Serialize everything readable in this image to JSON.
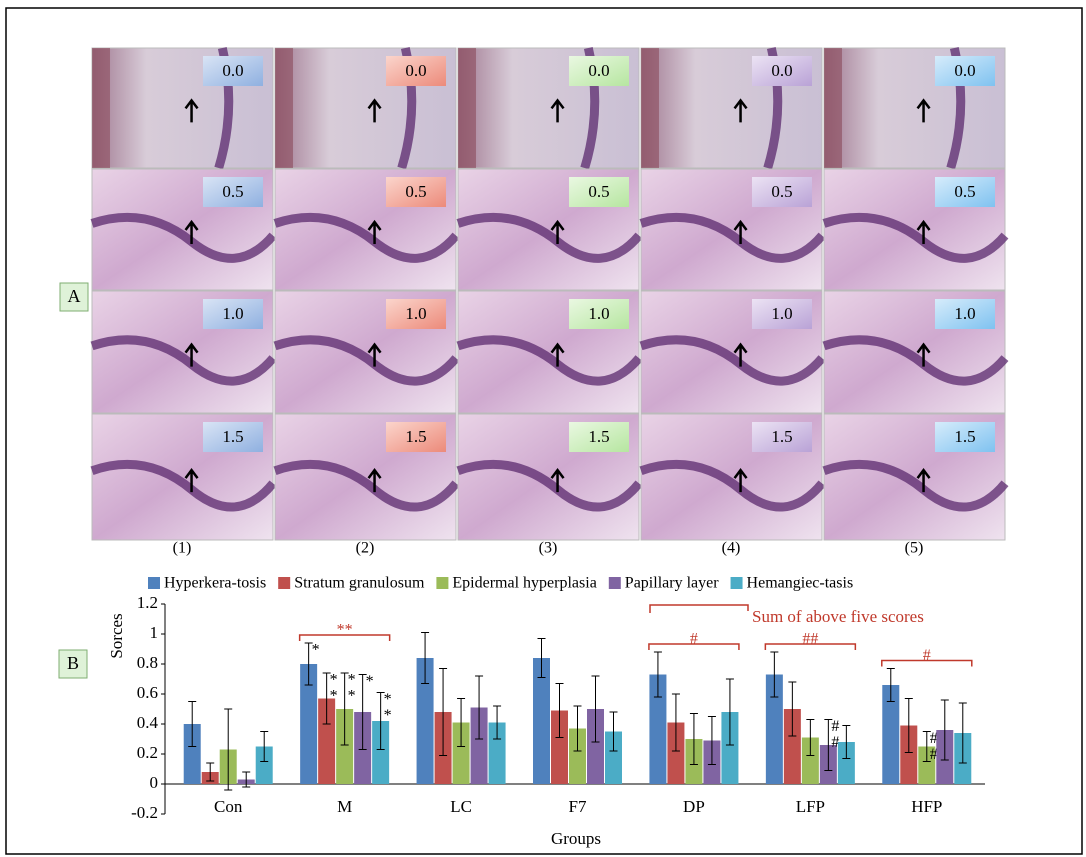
{
  "panel_a": {
    "label": "A",
    "scores": [
      [
        "0.0",
        "0.0",
        "0.0",
        "0.0",
        "0.0"
      ],
      [
        "0.5",
        "0.5",
        "0.5",
        "0.5",
        "0.5"
      ],
      [
        "1.0",
        "1.0",
        "1.0",
        "1.0",
        "1.0"
      ],
      [
        "1.5",
        "1.5",
        "1.5",
        "1.5",
        "1.5"
      ]
    ],
    "columns": [
      "(1)",
      "(2)",
      "(3)",
      "(4)",
      "(5)"
    ]
  },
  "chart_data": {
    "type": "bar",
    "panel_label": "B",
    "ylabel": "Sorces",
    "xlabel": "Groups",
    "categories": [
      "Con",
      "M",
      "LC",
      "F7",
      "DP",
      "LFP",
      "HFP"
    ],
    "ylim": [
      -0.2,
      1.2
    ],
    "yticks": [
      -0.2,
      0,
      0.2,
      0.4,
      0.6,
      0.8,
      1,
      1.2
    ],
    "legend": "top",
    "series": [
      {
        "name": "Hyperkera-tosis",
        "color": "#4f81bd",
        "values": [
          0.4,
          0.8,
          0.84,
          0.84,
          0.73,
          0.73,
          0.66
        ],
        "errors": [
          0.15,
          0.14,
          0.17,
          0.13,
          0.15,
          0.15,
          0.11
        ],
        "significance": [
          null,
          [
            "*"
          ],
          null,
          null,
          null,
          null,
          null
        ]
      },
      {
        "name": "Stratum granulosum",
        "color": "#c0504d",
        "values": [
          0.08,
          0.57,
          0.48,
          0.49,
          0.41,
          0.5,
          0.39
        ],
        "errors": [
          0.06,
          0.17,
          0.29,
          0.18,
          0.19,
          0.18,
          0.18
        ],
        "significance": [
          null,
          [
            "*",
            "*"
          ],
          null,
          null,
          null,
          null,
          null
        ]
      },
      {
        "name": "Epidermal hyperplasia",
        "color": "#9bbb59",
        "values": [
          0.23,
          0.5,
          0.41,
          0.37,
          0.3,
          0.31,
          0.25
        ],
        "errors": [
          0.27,
          0.24,
          0.16,
          0.15,
          0.17,
          0.12,
          0.1
        ],
        "significance": [
          null,
          [
            "*",
            "*"
          ],
          null,
          null,
          null,
          null,
          [
            "#",
            "#"
          ]
        ]
      },
      {
        "name": "Papillary layer",
        "color": "#8064a2",
        "values": [
          0.03,
          0.48,
          0.51,
          0.5,
          0.29,
          0.26,
          0.36
        ],
        "errors": [
          0.05,
          0.25,
          0.21,
          0.22,
          0.16,
          0.17,
          0.2
        ],
        "significance": [
          null,
          [
            "*"
          ],
          null,
          null,
          null,
          [
            "#",
            "#"
          ],
          null
        ]
      },
      {
        "name": "Hemangiec-tasis",
        "color": "#4bacc6",
        "values": [
          0.25,
          0.42,
          0.41,
          0.35,
          0.48,
          0.28,
          0.34
        ],
        "errors": [
          0.1,
          0.19,
          0.11,
          0.13,
          0.22,
          0.11,
          0.2
        ],
        "significance": [
          null,
          [
            "*",
            "*"
          ],
          null,
          null,
          null,
          null,
          null
        ]
      }
    ],
    "bracket_labels": [
      null,
      "**",
      null,
      null,
      "#",
      "##",
      "#"
    ],
    "note": "Sum of above five scores"
  }
}
